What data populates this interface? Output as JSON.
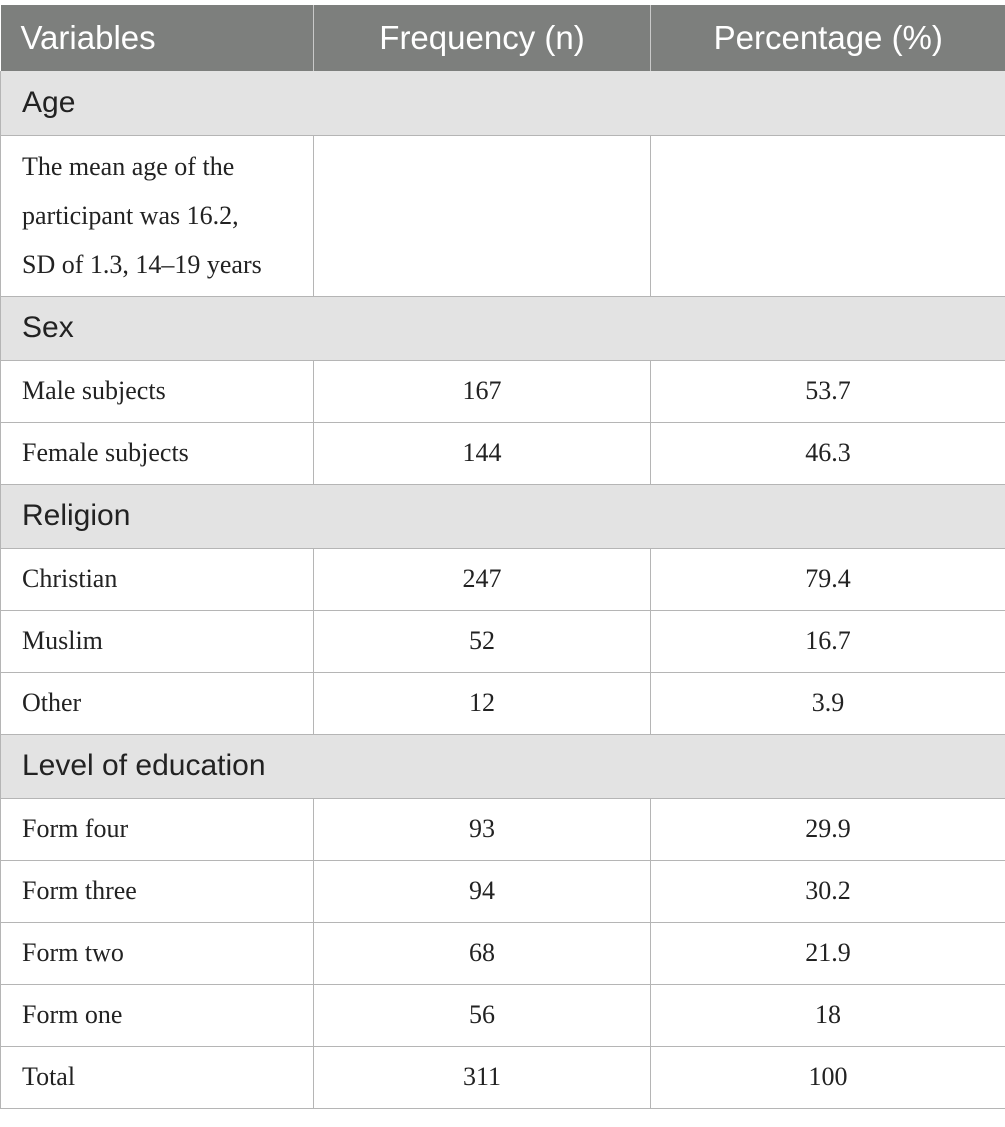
{
  "header": {
    "col1": "Variables",
    "col2": "Frequency (n)",
    "col3": "Percentage (%)"
  },
  "sections": {
    "age": {
      "title": "Age",
      "note_line1": "The mean age of the",
      "note_line2": "participant was 16.2,",
      "note_line3": "SD of 1.3, 14–19 years"
    },
    "sex": {
      "title": "Sex",
      "rows": [
        {
          "label": "Male subjects",
          "n": "167",
          "pct": "53.7"
        },
        {
          "label": "Female subjects",
          "n": "144",
          "pct": "46.3"
        }
      ]
    },
    "religion": {
      "title": "Religion",
      "rows": [
        {
          "label": "Christian",
          "n": "247",
          "pct": "79.4"
        },
        {
          "label": "Muslim",
          "n": "52",
          "pct": "16.7"
        },
        {
          "label": "Other",
          "n": "12",
          "pct": "3.9"
        }
      ]
    },
    "education": {
      "title": "Level of education",
      "rows": [
        {
          "label": "Form four",
          "n": "93",
          "pct": "29.9"
        },
        {
          "label": "Form three",
          "n": "94",
          "pct": "30.2"
        },
        {
          "label": "Form two",
          "n": "68",
          "pct": "21.9"
        },
        {
          "label": "Form one",
          "n": "56",
          "pct": "18"
        },
        {
          "label": "Total",
          "n": "311",
          "pct": "100"
        }
      ]
    }
  }
}
